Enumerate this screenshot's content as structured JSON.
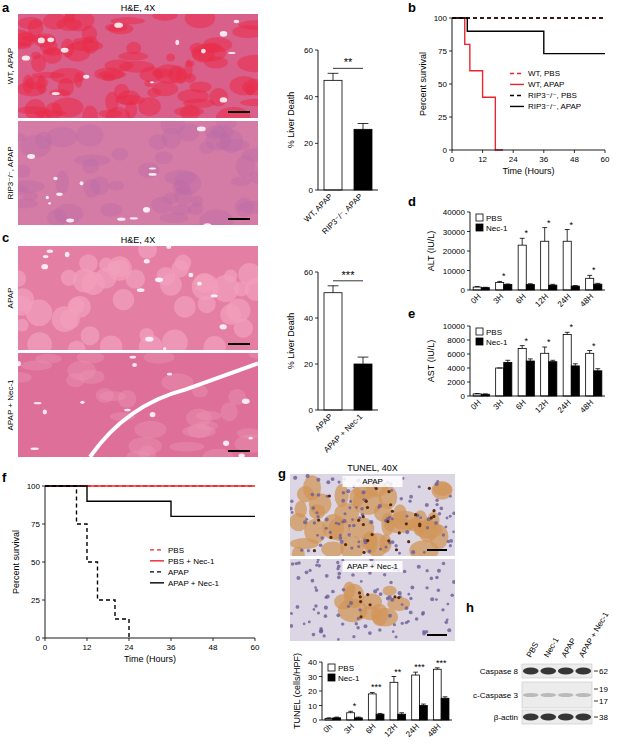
{
  "chart_data": [
    {
      "type": "bar",
      "y_label": "% Liver Death",
      "categories": [
        "WT, APAP",
        "RIP3⁻/⁻, APAP"
      ],
      "values": [
        47,
        26
      ],
      "errors": [
        3,
        2.5
      ],
      "colors": [
        "#ffffff",
        "#000000"
      ],
      "ylim": [
        0,
        60
      ],
      "yticks": [
        0,
        20,
        40,
        60
      ],
      "significance": "**"
    },
    {
      "type": "step",
      "x_label": "Time (Hours)",
      "y_label": "Percent survival",
      "xlim": [
        0,
        60
      ],
      "xticks": [
        0,
        12,
        24,
        36,
        48,
        60
      ],
      "ylim": [
        0,
        100
      ],
      "yticks": [
        0,
        25,
        50,
        75,
        100
      ],
      "legend": "right",
      "series": [
        {
          "name": "WT, PBS",
          "color": "#e8262b",
          "line_style": "dashed",
          "x": [
            0,
            60
          ],
          "values": [
            100,
            100
          ]
        },
        {
          "name": "WT, APAP",
          "color": "#e8262b",
          "line_style": "solid",
          "x": [
            0,
            5,
            7,
            12,
            17,
            20
          ],
          "values": [
            100,
            80,
            60,
            40,
            0,
            0
          ]
        },
        {
          "name": "RIP3⁻/⁻, PBS",
          "color": "#000000",
          "line_style": "dashed",
          "x": [
            0,
            60
          ],
          "values": [
            100,
            100
          ]
        },
        {
          "name": "RIP3⁻/⁻, APAP",
          "color": "#000000",
          "line_style": "solid",
          "x": [
            0,
            6,
            36,
            60
          ],
          "values": [
            100,
            90,
            73,
            73
          ]
        }
      ]
    },
    {
      "type": "bar",
      "y_label": "% Liver Death",
      "categories": [
        "APAP",
        "APAP + Nec-1"
      ],
      "values": [
        51,
        20
      ],
      "errors": [
        3,
        3
      ],
      "colors": [
        "#ffffff",
        "#000000"
      ],
      "ylim": [
        0,
        60
      ],
      "yticks": [
        0,
        20,
        40,
        60
      ],
      "significance": "***"
    },
    {
      "type": "bar",
      "y_label": "ALT (IU/L)",
      "categories": [
        "0H",
        "3H",
        "6H",
        "12H",
        "24H",
        "48H"
      ],
      "ylim": [
        0,
        40000
      ],
      "yticks": [
        0,
        10000,
        20000,
        30000,
        40000
      ],
      "legend": "top-left",
      "series": [
        {
          "name": "PBS",
          "color": "#ffffff",
          "values": [
            1500,
            3800,
            23000,
            25000,
            25000,
            6000
          ],
          "errors": [
            300,
            600,
            3500,
            7000,
            6000,
            1500
          ]
        },
        {
          "name": "Nec-1",
          "color": "#000000",
          "values": [
            1200,
            2800,
            2800,
            2500,
            2000,
            3000
          ],
          "errors": [
            200,
            300,
            400,
            400,
            300,
            400
          ]
        }
      ],
      "significance": [
        null,
        "*",
        "*",
        "*",
        "*",
        "*"
      ]
    },
    {
      "type": "bar",
      "y_label": "AST (IU/L)",
      "categories": [
        "0H",
        "3H",
        "6H",
        "12H",
        "24H",
        "48H"
      ],
      "ylim": [
        0,
        10000
      ],
      "yticks": [
        0,
        2000,
        4000,
        6000,
        8000,
        10000
      ],
      "legend": "top-left",
      "series": [
        {
          "name": "PBS",
          "color": "#ffffff",
          "values": [
            300,
            4000,
            6800,
            6100,
            8800,
            6100
          ],
          "errors": [
            50,
            0,
            400,
            900,
            300,
            400
          ]
        },
        {
          "name": "Nec-1",
          "color": "#000000",
          "values": [
            250,
            4800,
            5000,
            4900,
            4300,
            3600
          ],
          "errors": [
            50,
            300,
            300,
            200,
            300,
            300
          ]
        }
      ],
      "significance": [
        null,
        null,
        "*",
        "*",
        "*",
        "*"
      ]
    },
    {
      "type": "step",
      "x_label": "Time (Hours)",
      "y_label": "Percent survival",
      "xlim": [
        0,
        60
      ],
      "xticks": [
        0,
        12,
        24,
        36,
        48,
        60
      ],
      "ylim": [
        0,
        100
      ],
      "yticks": [
        0,
        25,
        50,
        75,
        100
      ],
      "legend": "right",
      "series": [
        {
          "name": "PBS",
          "color": "#e8262b",
          "line_style": "dashed",
          "x": [
            0,
            60
          ],
          "values": [
            100,
            100
          ]
        },
        {
          "name": "PBS + Nec-1",
          "color": "#e8262b",
          "line_style": "solid",
          "x": [
            0,
            60
          ],
          "values": [
            100,
            100
          ]
        },
        {
          "name": "APAP",
          "color": "#000000",
          "line_style": "dashed",
          "x": [
            0,
            9,
            12,
            15,
            20,
            24
          ],
          "values": [
            100,
            75,
            50,
            25,
            12.5,
            0
          ]
        },
        {
          "name": "APAP + Nec-1",
          "color": "#000000",
          "line_style": "solid",
          "x": [
            0,
            12,
            36,
            60
          ],
          "values": [
            100,
            90,
            80,
            80
          ]
        }
      ]
    },
    {
      "type": "bar",
      "y_label": "TUNEL (cells/HPF)",
      "categories": [
        "0h",
        "3H",
        "6H",
        "12H",
        "24H",
        "48H"
      ],
      "ylim": [
        0,
        40
      ],
      "yticks": [
        0,
        10,
        20,
        30,
        40
      ],
      "legend": "top-left",
      "series": [
        {
          "name": "PBS",
          "color": "#ffffff",
          "values": [
            1,
            5,
            18,
            26,
            31,
            35
          ],
          "errors": [
            0.5,
            1,
            1,
            4,
            2,
            1
          ]
        },
        {
          "name": "Nec-1",
          "color": "#000000",
          "values": [
            1.5,
            1.5,
            4,
            4,
            10,
            15
          ],
          "errors": [
            0.5,
            0.5,
            0.5,
            1,
            1,
            1
          ]
        }
      ],
      "significance": [
        null,
        "*",
        "***",
        "**",
        "***",
        "***"
      ]
    }
  ],
  "panel_labels": [
    "a",
    "b",
    "c",
    "d",
    "e",
    "f",
    "g",
    "h"
  ],
  "images": [
    {
      "title": "H&E, 4X",
      "rows": [
        "WT, APAP",
        "RIP3⁻/⁻, APAP"
      ]
    },
    {
      "title": "H&E, 4X",
      "rows": [
        "APAP",
        "APAP + Nec-1"
      ]
    },
    {
      "title": "TUNEL, 40X",
      "rows": [
        "APAP",
        "APAP + Nec-1"
      ]
    }
  ],
  "blot": {
    "lanes": [
      "PBS",
      "Nec-1",
      "APAP",
      "APAP + Nec-1"
    ],
    "bands": [
      {
        "name": "Caspase 8",
        "markers": [
          62
        ]
      },
      {
        "name": "c-Caspase 3",
        "markers": [
          19,
          17
        ]
      },
      {
        "name": "β-actin",
        "markers": [
          38
        ]
      }
    ]
  }
}
